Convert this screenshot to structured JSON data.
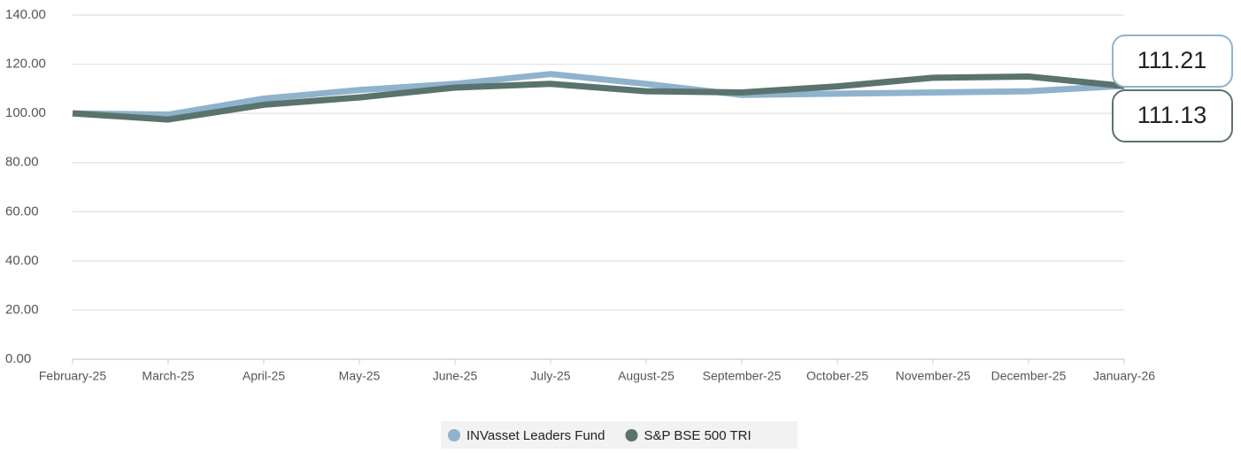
{
  "chart_data": {
    "type": "line",
    "categories": [
      "February-25",
      "March-25",
      "April-25",
      "May-25",
      "June-25",
      "July-25",
      "August-25",
      "September-25",
      "October-25",
      "November-25",
      "December-25",
      "January-26"
    ],
    "series": [
      {
        "name": "INVasset Leaders Fund",
        "color": "#8fb3cc",
        "values": [
          100,
          99.5,
          106,
          109.5,
          112,
          116,
          112,
          107.5,
          108,
          108.5,
          109,
          111.21
        ],
        "value_labels": [
          null,
          null,
          null,
          null,
          null,
          null,
          null,
          null,
          null,
          null,
          null,
          "111.21"
        ]
      },
      {
        "name": "S&P BSE 500 TRI",
        "color": "#5a736c",
        "values": [
          100,
          97.5,
          103.5,
          106.5,
          110.5,
          112,
          109,
          108.5,
          111,
          114.5,
          115,
          111.13
        ],
        "value_labels": [
          null,
          null,
          null,
          null,
          null,
          null,
          null,
          null,
          null,
          null,
          null,
          "111.13"
        ]
      }
    ],
    "ylim": [
      0,
      140
    ],
    "yticks": [
      {
        "value": 0,
        "label": "0.00"
      },
      {
        "value": 20,
        "label": "20.00"
      },
      {
        "value": 40,
        "label": "40.00"
      },
      {
        "value": 60,
        "label": "60.00"
      },
      {
        "value": 80,
        "label": "80.00"
      },
      {
        "value": 100,
        "label": "100.00"
      },
      {
        "value": 120,
        "label": "120.00"
      },
      {
        "value": 140,
        "label": "140.00"
      }
    ],
    "grid": true
  }
}
